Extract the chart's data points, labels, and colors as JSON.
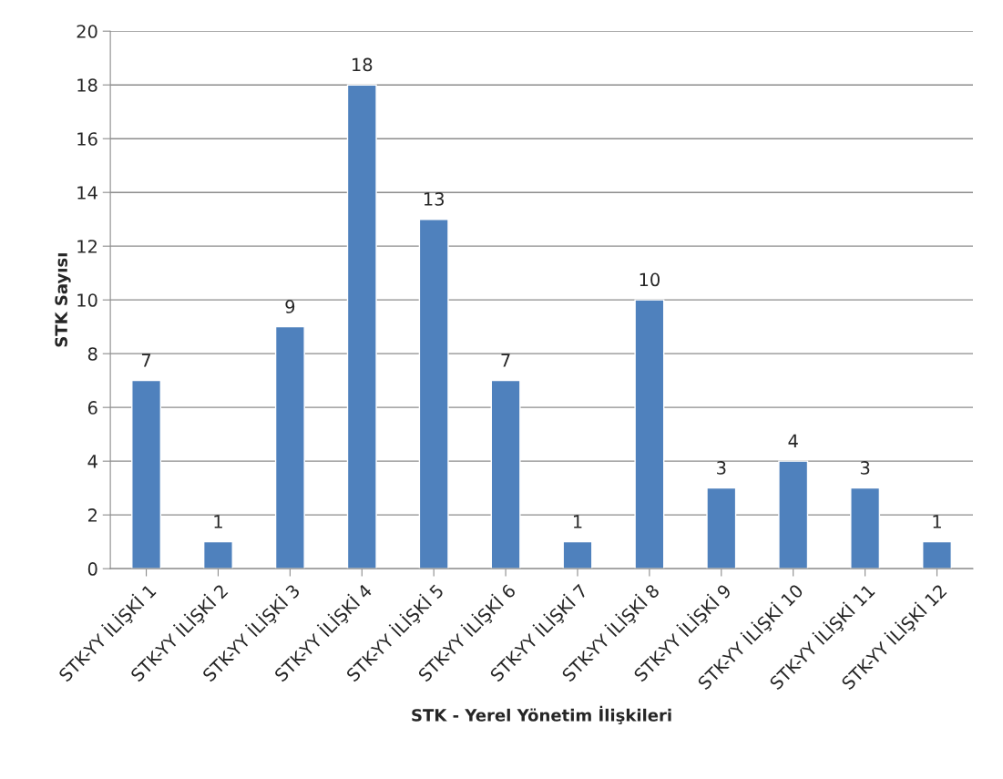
{
  "chart_data": {
    "type": "bar",
    "categories": [
      "STK-YY İLİŞKİ 1",
      "STK-YY İLİŞKİ 2",
      "STK-YY İLİŞKİ 3",
      "STK-YY İLİŞKİ 4",
      "STK-YY İLİŞKİ 5",
      "STK-YY İLİŞKİ 6",
      "STK-YY İLİŞKİ 7",
      "STK-YY İLİŞKİ 8",
      "STK-YY İLİŞKİ 9",
      "STK-YY İLİŞKİ 10",
      "STK-YY İLİŞKİ 11",
      "STK-YY İLİŞKİ 12"
    ],
    "values": [
      7,
      1,
      9,
      18,
      13,
      7,
      1,
      10,
      3,
      4,
      3,
      1
    ],
    "color": "#4f81bd",
    "xlabel": "STK - Yerel Yönetim İlişkileri",
    "ylabel": "STK Sayısı",
    "ylim": [
      0,
      20
    ],
    "yticks": [
      0,
      2,
      4,
      6,
      8,
      10,
      12,
      14,
      16,
      18,
      20
    ],
    "grid": "y",
    "data_labels": true
  }
}
